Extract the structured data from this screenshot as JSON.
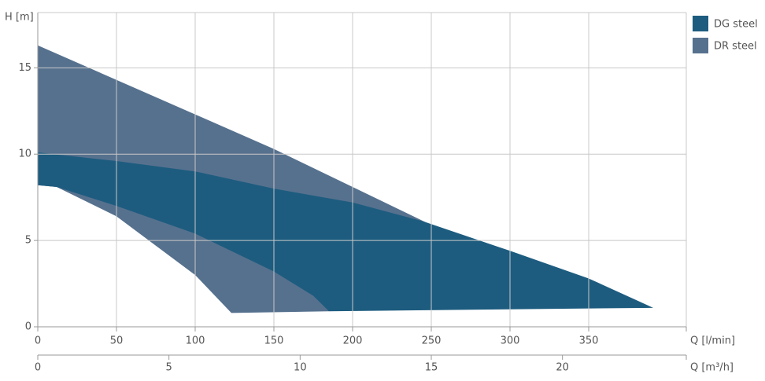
{
  "chart_data": {
    "type": "area",
    "ylabel": "H [m]",
    "xlabel": "Q [l/min]",
    "x2label": "Q [m³/h]",
    "xlim": [
      0,
      412
    ],
    "xticks": [
      0,
      50,
      100,
      150,
      200,
      250,
      300,
      350
    ],
    "x2lim": [
      0,
      24.72
    ],
    "x2ticks": [
      0,
      5,
      10,
      15,
      20
    ],
    "ylim": [
      0,
      18.2
    ],
    "yticks": [
      0,
      5,
      10,
      15
    ],
    "grid": true,
    "legend": "right",
    "series": [
      {
        "name": "DG steel",
        "color": "#1d5c7f",
        "x": [
          0,
          50,
          100,
          150,
          200,
          245,
          300,
          350,
          391,
          185,
          175,
          150,
          100,
          50,
          12,
          0
        ],
        "values": [
          10.1,
          9.6,
          9.0,
          8.0,
          7.2,
          6.1,
          4.4,
          2.8,
          1.1,
          0.9,
          1.8,
          3.2,
          5.4,
          7.0,
          8.1,
          8.2
        ]
      },
      {
        "name": "DR steel",
        "color": "#56718e",
        "x": [
          0,
          150,
          250,
          185,
          123,
          100,
          50,
          12,
          0
        ],
        "values": [
          16.3,
          10.3,
          5.9,
          0.9,
          0.8,
          3.0,
          6.4,
          8.1,
          8.2
        ]
      }
    ]
  }
}
